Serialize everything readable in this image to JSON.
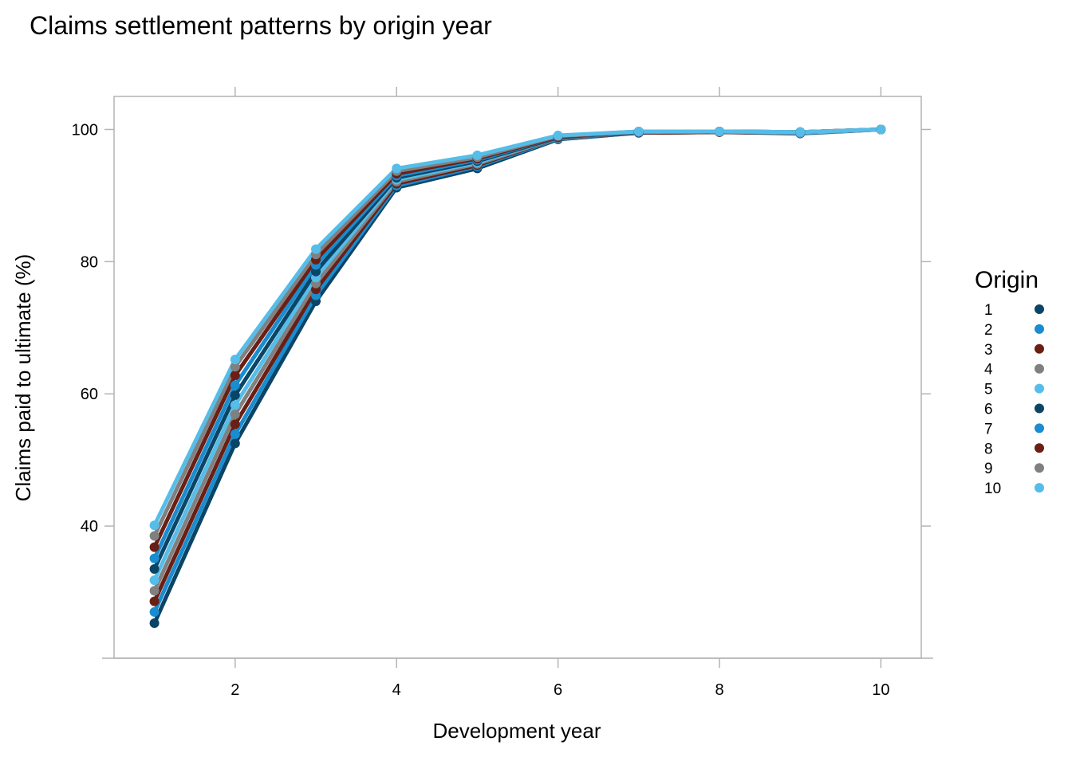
{
  "chart_data": {
    "type": "line",
    "title": "Claims settlement patterns by origin year",
    "xlabel": "Development year",
    "ylabel": "Claims paid to ultimate (%)",
    "xlim": [
      0.5,
      10.5
    ],
    "ylim": [
      20,
      105
    ],
    "xticks": [
      2,
      4,
      6,
      8,
      10
    ],
    "yticks": [
      40,
      60,
      80,
      100
    ],
    "grid": false,
    "legend": {
      "title": "Origin",
      "position": "right"
    },
    "x": [
      1,
      2,
      3,
      4,
      5,
      6,
      7,
      8,
      9,
      10
    ],
    "series": [
      {
        "name": "1",
        "color": "#0b4566",
        "values": [
          25.3,
          52.5,
          74.0,
          91.2,
          94.1,
          98.5,
          99.5,
          99.6,
          99.4,
          100
        ]
      },
      {
        "name": "2",
        "color": "#1a8cd0",
        "values": [
          27.0,
          53.9,
          74.9,
          91.5,
          94.4,
          98.6,
          99.5,
          99.6,
          99.5,
          100
        ]
      },
      {
        "name": "3",
        "color": "#6b1f14",
        "values": [
          28.6,
          55.4,
          75.8,
          91.8,
          94.6,
          98.7,
          99.5,
          99.6,
          99.5,
          100
        ]
      },
      {
        "name": "4",
        "color": "#808080",
        "values": [
          30.2,
          56.9,
          76.7,
          92.1,
          94.8,
          98.7,
          99.6,
          99.7,
          99.5,
          100
        ]
      },
      {
        "name": "5",
        "color": "#56bde9",
        "values": [
          31.8,
          58.3,
          77.6,
          92.4,
          95.0,
          98.8,
          99.6,
          99.7,
          99.5,
          100
        ]
      },
      {
        "name": "6",
        "color": "#0b4566",
        "values": [
          33.5,
          59.8,
          78.5,
          92.7,
          95.2,
          98.8,
          99.6,
          99.7,
          99.6,
          100
        ]
      },
      {
        "name": "7",
        "color": "#1a8cd0",
        "values": [
          35.1,
          61.3,
          79.5,
          93.0,
          95.4,
          98.9,
          99.6,
          99.7,
          99.6,
          100
        ]
      },
      {
        "name": "8",
        "color": "#6b1f14",
        "values": [
          36.8,
          62.8,
          80.3,
          93.3,
          95.6,
          98.9,
          99.7,
          99.7,
          99.6,
          100
        ]
      },
      {
        "name": "9",
        "color": "#808080",
        "values": [
          38.5,
          64.1,
          81.1,
          93.7,
          95.8,
          99.0,
          99.7,
          99.7,
          99.6,
          100
        ]
      },
      {
        "name": "10",
        "color": "#56bde9",
        "values": [
          40.1,
          65.2,
          81.9,
          94.1,
          96.1,
          99.1,
          99.7,
          99.7,
          99.6,
          100
        ]
      }
    ]
  }
}
